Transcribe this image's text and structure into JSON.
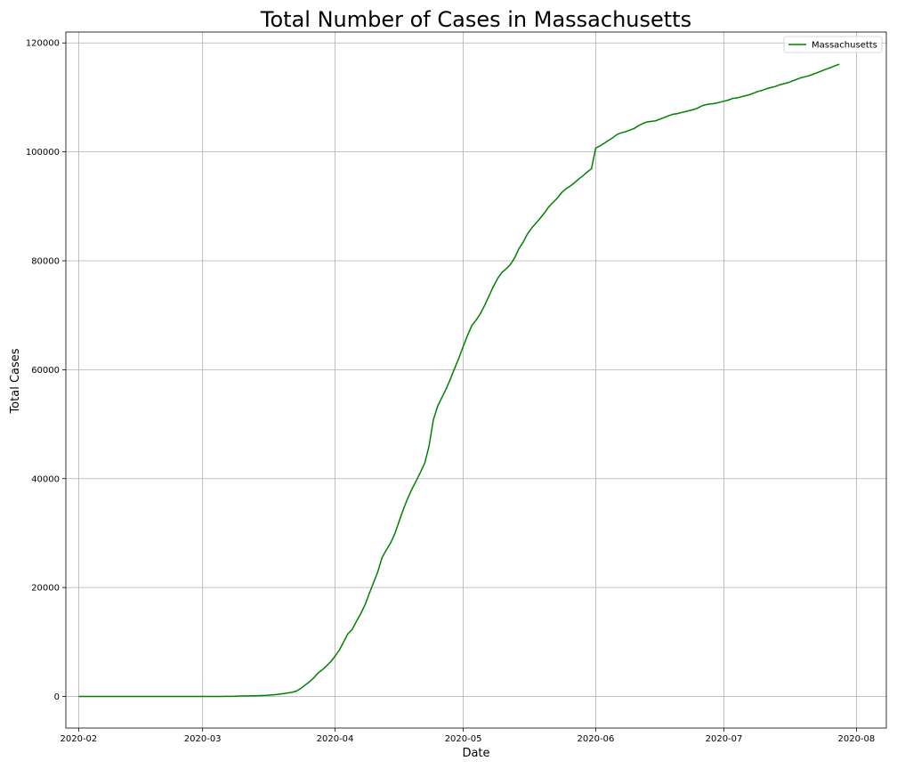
{
  "chart_data": {
    "type": "line",
    "title": "Total Number of Cases in Massachusetts",
    "xlabel": "Date",
    "ylabel": "Total Cases",
    "xlim": [
      "2020-01-29",
      "2020-08-08"
    ],
    "ylim": [
      -5800,
      122000
    ],
    "grid": true,
    "legend_position": "top-right",
    "x_ticks": [
      "2020-02-01",
      "2020-03-01",
      "2020-04-01",
      "2020-05-01",
      "2020-06-01",
      "2020-07-01",
      "2020-08-01"
    ],
    "x_tick_labels": [
      "2020-02",
      "2020-03",
      "2020-04",
      "2020-05",
      "2020-06",
      "2020-07",
      "2020-08"
    ],
    "y_ticks": [
      0,
      20000,
      40000,
      60000,
      80000,
      100000,
      120000
    ],
    "y_tick_labels": [
      "0",
      "20000",
      "40000",
      "60000",
      "80000",
      "100000",
      "120000"
    ],
    "series": [
      {
        "name": "Massachusetts",
        "color": "#008000",
        "points": [
          [
            "2020-02-01",
            1
          ],
          [
            "2020-02-15",
            1
          ],
          [
            "2020-03-01",
            1
          ],
          [
            "2020-03-05",
            2
          ],
          [
            "2020-03-08",
            28
          ],
          [
            "2020-03-10",
            92
          ],
          [
            "2020-03-12",
            108
          ],
          [
            "2020-03-14",
            138
          ],
          [
            "2020-03-16",
            197
          ],
          [
            "2020-03-18",
            328
          ],
          [
            "2020-03-20",
            525
          ],
          [
            "2020-03-22",
            777
          ],
          [
            "2020-03-23",
            1000
          ],
          [
            "2020-03-24",
            1500
          ],
          [
            "2020-03-25",
            2100
          ],
          [
            "2020-03-26",
            2700
          ],
          [
            "2020-03-27",
            3400
          ],
          [
            "2020-03-28",
            4300
          ],
          [
            "2020-03-29",
            4900
          ],
          [
            "2020-03-30",
            5600
          ],
          [
            "2020-03-31",
            6400
          ],
          [
            "2020-04-01",
            7400
          ],
          [
            "2020-04-02",
            8500
          ],
          [
            "2020-04-03",
            10000
          ],
          [
            "2020-04-04",
            11500
          ],
          [
            "2020-04-05",
            12300
          ],
          [
            "2020-04-06",
            13800
          ],
          [
            "2020-04-07",
            15200
          ],
          [
            "2020-04-08",
            16800
          ],
          [
            "2020-04-09",
            18900
          ],
          [
            "2020-04-10",
            20900
          ],
          [
            "2020-04-11",
            22900
          ],
          [
            "2020-04-12",
            25500
          ],
          [
            "2020-04-13",
            26900
          ],
          [
            "2020-04-14",
            28200
          ],
          [
            "2020-04-15",
            29900
          ],
          [
            "2020-04-16",
            32200
          ],
          [
            "2020-04-17",
            34400
          ],
          [
            "2020-04-18",
            36400
          ],
          [
            "2020-04-19",
            38100
          ],
          [
            "2020-04-20",
            39600
          ],
          [
            "2020-04-21",
            41200
          ],
          [
            "2020-04-22",
            42900
          ],
          [
            "2020-04-23",
            46000
          ],
          [
            "2020-04-24",
            50800
          ],
          [
            "2020-04-25",
            53300
          ],
          [
            "2020-04-26",
            54900
          ],
          [
            "2020-04-27",
            56500
          ],
          [
            "2020-04-28",
            58300
          ],
          [
            "2020-04-29",
            60300
          ],
          [
            "2020-04-30",
            62200
          ],
          [
            "2020-05-01",
            64300
          ],
          [
            "2020-05-02",
            66300
          ],
          [
            "2020-05-03",
            68100
          ],
          [
            "2020-05-04",
            69100
          ],
          [
            "2020-05-05",
            70300
          ],
          [
            "2020-05-06",
            71800
          ],
          [
            "2020-05-07",
            73500
          ],
          [
            "2020-05-08",
            75200
          ],
          [
            "2020-05-09",
            76700
          ],
          [
            "2020-05-10",
            77800
          ],
          [
            "2020-05-11",
            78500
          ],
          [
            "2020-05-12",
            79300
          ],
          [
            "2020-05-13",
            80500
          ],
          [
            "2020-05-14",
            82200
          ],
          [
            "2020-05-15",
            83400
          ],
          [
            "2020-05-16",
            84900
          ],
          [
            "2020-05-17",
            86000
          ],
          [
            "2020-05-18",
            86900
          ],
          [
            "2020-05-19",
            87800
          ],
          [
            "2020-05-20",
            88800
          ],
          [
            "2020-05-21",
            89900
          ],
          [
            "2020-05-22",
            90700
          ],
          [
            "2020-05-23",
            91500
          ],
          [
            "2020-05-24",
            92500
          ],
          [
            "2020-05-25",
            93200
          ],
          [
            "2020-05-26",
            93700
          ],
          [
            "2020-05-27",
            94300
          ],
          [
            "2020-05-28",
            95000
          ],
          [
            "2020-05-29",
            95600
          ],
          [
            "2020-05-30",
            96300
          ],
          [
            "2020-05-31",
            96900
          ],
          [
            "2020-06-01",
            100700
          ],
          [
            "2020-06-02",
            101100
          ],
          [
            "2020-06-03",
            101600
          ],
          [
            "2020-06-04",
            102100
          ],
          [
            "2020-06-05",
            102600
          ],
          [
            "2020-06-06",
            103200
          ],
          [
            "2020-06-07",
            103500
          ],
          [
            "2020-06-08",
            103700
          ],
          [
            "2020-06-09",
            104000
          ],
          [
            "2020-06-10",
            104300
          ],
          [
            "2020-06-11",
            104800
          ],
          [
            "2020-06-12",
            105200
          ],
          [
            "2020-06-13",
            105500
          ],
          [
            "2020-06-14",
            105600
          ],
          [
            "2020-06-15",
            105700
          ],
          [
            "2020-06-16",
            106000
          ],
          [
            "2020-06-17",
            106300
          ],
          [
            "2020-06-18",
            106600
          ],
          [
            "2020-06-19",
            106900
          ],
          [
            "2020-06-20",
            107000
          ],
          [
            "2020-06-21",
            107200
          ],
          [
            "2020-06-22",
            107400
          ],
          [
            "2020-06-23",
            107600
          ],
          [
            "2020-06-24",
            107800
          ],
          [
            "2020-06-25",
            108100
          ],
          [
            "2020-06-26",
            108500
          ],
          [
            "2020-06-27",
            108700
          ],
          [
            "2020-06-28",
            108800
          ],
          [
            "2020-06-29",
            108900
          ],
          [
            "2020-06-30",
            109100
          ],
          [
            "2020-07-01",
            109300
          ],
          [
            "2020-07-02",
            109500
          ],
          [
            "2020-07-03",
            109800
          ],
          [
            "2020-07-04",
            109900
          ],
          [
            "2020-07-05",
            110100
          ],
          [
            "2020-07-06",
            110300
          ],
          [
            "2020-07-07",
            110500
          ],
          [
            "2020-07-08",
            110800
          ],
          [
            "2020-07-09",
            111100
          ],
          [
            "2020-07-10",
            111300
          ],
          [
            "2020-07-11",
            111600
          ],
          [
            "2020-07-12",
            111800
          ],
          [
            "2020-07-13",
            112000
          ],
          [
            "2020-07-14",
            112300
          ],
          [
            "2020-07-15",
            112500
          ],
          [
            "2020-07-16",
            112700
          ],
          [
            "2020-07-17",
            113000
          ],
          [
            "2020-07-18",
            113300
          ],
          [
            "2020-07-19",
            113600
          ],
          [
            "2020-07-20",
            113800
          ],
          [
            "2020-07-21",
            114000
          ],
          [
            "2020-07-22",
            114300
          ],
          [
            "2020-07-23",
            114600
          ],
          [
            "2020-07-24",
            114900
          ],
          [
            "2020-07-25",
            115200
          ],
          [
            "2020-07-26",
            115500
          ],
          [
            "2020-07-27",
            115800
          ],
          [
            "2020-07-28",
            116100
          ]
        ]
      }
    ]
  }
}
